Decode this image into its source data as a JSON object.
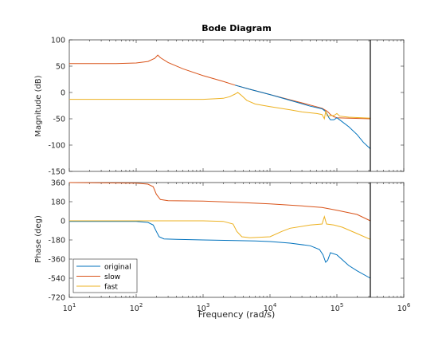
{
  "chart_data": {
    "type": "line",
    "title": "Bode Diagram",
    "xlabel": "Frequency  (rad/s)",
    "xscale": "log",
    "xlim": [
      10,
      1000000
    ],
    "x_ticks": [
      "10",
      "10",
      "10",
      "10",
      "10",
      "10"
    ],
    "x_tick_exponents": [
      "1",
      "2",
      "3",
      "4",
      "5",
      "6"
    ],
    "vertical_line_at": 316000,
    "grid": false,
    "legend_position": "bottom-left",
    "series_colors": {
      "original": "#0072bd",
      "slow": "#d95319",
      "fast": "#edb120"
    },
    "panels": [
      {
        "name": "magnitude",
        "ylabel": "Magnitude (dB)",
        "ylim": [
          -150,
          100
        ],
        "y_ticks": [
          "100",
          "50",
          "0",
          "-50",
          "-100",
          "-150"
        ],
        "series": [
          {
            "name": "slow",
            "points": [
              [
                10,
                55
              ],
              [
                50,
                55
              ],
              [
                100,
                56
              ],
              [
                150,
                59
              ],
              [
                190,
                65
              ],
              [
                210,
                71
              ],
              [
                230,
                66
              ],
              [
                300,
                57
              ],
              [
                500,
                45
              ],
              [
                1000,
                32
              ],
              [
                2000,
                21
              ],
              [
                3000,
                14
              ],
              [
                5000,
                6
              ],
              [
                10000,
                -4
              ],
              [
                20000,
                -14
              ],
              [
                40000,
                -24
              ],
              [
                60000,
                -30
              ],
              [
                70000,
                -35
              ],
              [
                75000,
                -38
              ],
              [
                80000,
                -42
              ],
              [
                90000,
                -46
              ],
              [
                100000,
                -48
              ],
              [
                150000,
                -49
              ],
              [
                316000,
                -50
              ]
            ]
          },
          {
            "name": "original",
            "points": [
              [
                3000,
                14
              ],
              [
                5000,
                6
              ],
              [
                10000,
                -4
              ],
              [
                20000,
                -15
              ],
              [
                40000,
                -26
              ],
              [
                60000,
                -31
              ],
              [
                68000,
                -36
              ],
              [
                72000,
                -42
              ],
              [
                76000,
                -48
              ],
              [
                80000,
                -52
              ],
              [
                90000,
                -52
              ],
              [
                100000,
                -48
              ],
              [
                110000,
                -52
              ],
              [
                150000,
                -65
              ],
              [
                200000,
                -80
              ],
              [
                250000,
                -95
              ],
              [
                316000,
                -107
              ]
            ]
          },
          {
            "name": "fast",
            "points": [
              [
                10,
                -13
              ],
              [
                100,
                -13
              ],
              [
                500,
                -13
              ],
              [
                1000,
                -13
              ],
              [
                1500,
                -12
              ],
              [
                2000,
                -11
              ],
              [
                2500,
                -8
              ],
              [
                3000,
                -3
              ],
              [
                3300,
                0
              ],
              [
                3700,
                -5
              ],
              [
                4500,
                -15
              ],
              [
                6000,
                -22
              ],
              [
                10000,
                -27
              ],
              [
                20000,
                -33
              ],
              [
                30000,
                -37
              ],
              [
                50000,
                -40
              ],
              [
                60000,
                -42
              ],
              [
                65000,
                -50
              ],
              [
                68000,
                -36
              ],
              [
                72000,
                -45
              ],
              [
                80000,
                -44
              ],
              [
                90000,
                -44
              ],
              [
                100000,
                -40
              ],
              [
                110000,
                -45
              ],
              [
                150000,
                -47
              ],
              [
                316000,
                -49
              ]
            ]
          }
        ]
      },
      {
        "name": "phase",
        "ylabel": "Phase (deg)",
        "ylim": [
          -720,
          360
        ],
        "y_ticks": [
          "360",
          "180",
          "0",
          "-180",
          "-360",
          "-540",
          "-720"
        ],
        "series": [
          {
            "name": "slow",
            "points": [
              [
                10,
                360
              ],
              [
                100,
                355
              ],
              [
                150,
                345
              ],
              [
                180,
                320
              ],
              [
                200,
                250
              ],
              [
                230,
                200
              ],
              [
                300,
                190
              ],
              [
                1000,
                185
              ],
              [
                3000,
                175
              ],
              [
                10000,
                160
              ],
              [
                30000,
                140
              ],
              [
                60000,
                125
              ],
              [
                100000,
                100
              ],
              [
                200000,
                60
              ],
              [
                316000,
                0
              ]
            ]
          },
          {
            "name": "original",
            "points": [
              [
                10,
                -5
              ],
              [
                100,
                -5
              ],
              [
                150,
                -15
              ],
              [
                180,
                -40
              ],
              [
                200,
                -100
              ],
              [
                220,
                -150
              ],
              [
                260,
                -170
              ],
              [
                400,
                -175
              ],
              [
                1000,
                -180
              ],
              [
                3000,
                -185
              ],
              [
                6000,
                -190
              ],
              [
                10000,
                -195
              ],
              [
                20000,
                -210
              ],
              [
                40000,
                -235
              ],
              [
                55000,
                -270
              ],
              [
                62000,
                -320
              ],
              [
                68000,
                -390
              ],
              [
                73000,
                -370
              ],
              [
                80000,
                -300
              ],
              [
                100000,
                -320
              ],
              [
                150000,
                -420
              ],
              [
                200000,
                -470
              ],
              [
                316000,
                -540
              ]
            ]
          },
          {
            "name": "fast",
            "points": [
              [
                10,
                0
              ],
              [
                500,
                0
              ],
              [
                1000,
                0
              ],
              [
                2000,
                -5
              ],
              [
                2800,
                -30
              ],
              [
                3200,
                -100
              ],
              [
                3800,
                -150
              ],
              [
                5000,
                -160
              ],
              [
                10000,
                -150
              ],
              [
                15000,
                -100
              ],
              [
                20000,
                -70
              ],
              [
                40000,
                -40
              ],
              [
                60000,
                -30
              ],
              [
                65000,
                40
              ],
              [
                70000,
                -30
              ],
              [
                90000,
                -40
              ],
              [
                120000,
                -60
              ],
              [
                200000,
                -120
              ],
              [
                316000,
                -175
              ]
            ]
          }
        ]
      }
    ]
  }
}
